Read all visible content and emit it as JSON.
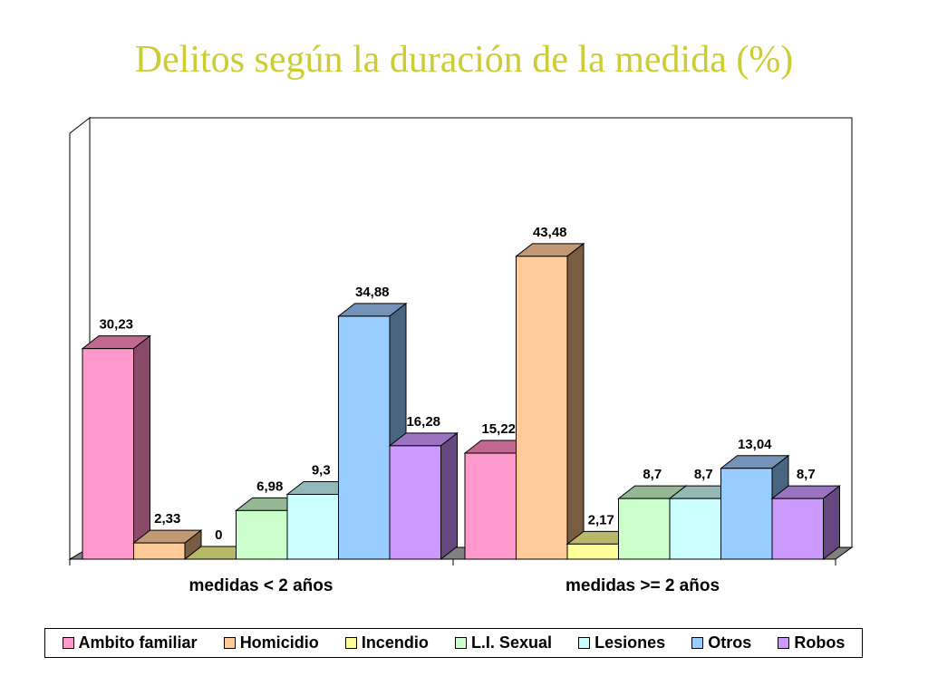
{
  "chart_data": {
    "type": "bar",
    "title": "Delitos según la duración de la medida (%)",
    "categories": [
      "medidas < 2 años",
      "medidas >= 2 años"
    ],
    "series": [
      {
        "name": "Ambito familiar",
        "values": [
          30.23,
          15.22
        ],
        "labels": [
          "30,23",
          "15,22"
        ],
        "color": "#ff99cc",
        "side": "#8a4a6a",
        "top": "#c06890"
      },
      {
        "name": "Homicidio",
        "values": [
          2.33,
          43.48
        ],
        "labels": [
          "2,33",
          "43,48"
        ],
        "color": "#ffcc99",
        "side": "#7a5c42",
        "top": "#c09a74"
      },
      {
        "name": "Incendio",
        "values": [
          0,
          2.17
        ],
        "labels": [
          "0",
          "2,17"
        ],
        "color": "#ffff99",
        "side": "#7a7a48",
        "top": "#b8b86a"
      },
      {
        "name": "L.I. Sexual",
        "values": [
          6.98,
          8.7
        ],
        "labels": [
          "6,98",
          "8,7"
        ],
        "color": "#ccffcc",
        "side": "#5f7a5f",
        "top": "#94b894"
      },
      {
        "name": "Lesiones",
        "values": [
          9.3,
          8.7
        ],
        "labels": [
          "9,3",
          "8,7"
        ],
        "color": "#ccffff",
        "side": "#5f7a7a",
        "top": "#94b8b8"
      },
      {
        "name": "Otros",
        "values": [
          34.88,
          13.04
        ],
        "labels": [
          "34,88",
          "13,04"
        ],
        "color": "#99ccff",
        "side": "#4a6580",
        "top": "#7394b8"
      },
      {
        "name": "Robos",
        "values": [
          16.28,
          8.7
        ],
        "labels": [
          "16,28",
          "8,7"
        ],
        "color": "#cc99ff",
        "side": "#65487f",
        "top": "#9a74c0"
      }
    ],
    "ylim": [
      0,
      50
    ],
    "grid": false,
    "legend_position": "bottom"
  }
}
